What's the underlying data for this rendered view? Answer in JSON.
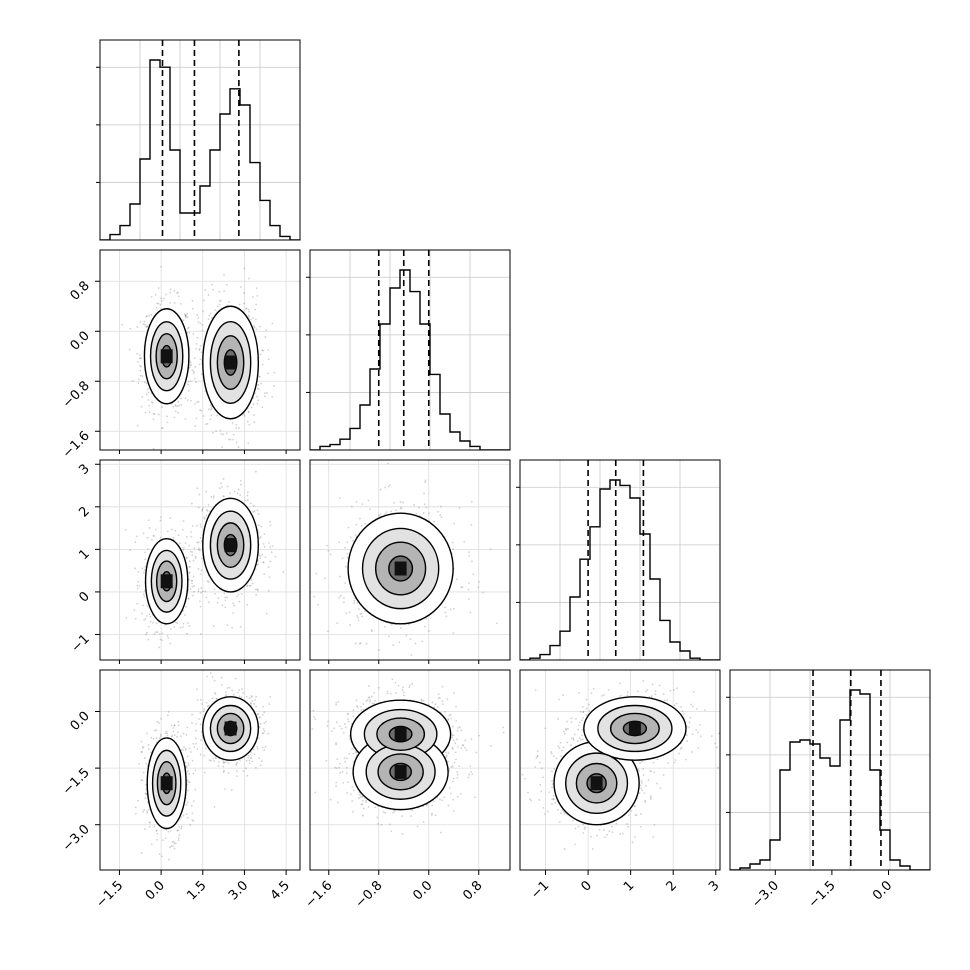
{
  "chart_data": {
    "type": "corner",
    "title": "",
    "n_params": 4,
    "params": [
      {
        "index": 0,
        "label": "",
        "range": [
          -2.2,
          5.0
        ],
        "ticks": [
          "−1.5",
          "0.0",
          "1.5",
          "3.0",
          "4.5"
        ],
        "tick_values": [
          -1.5,
          0.0,
          1.5,
          3.0,
          4.5
        ],
        "quantiles": [
          0.05,
          1.2,
          2.8
        ]
      },
      {
        "index": 1,
        "label": "",
        "range": [
          -1.9,
          1.3
        ],
        "ticks": [
          "−1.6",
          "−0.8",
          "0.0",
          "0.8"
        ],
        "tick_values": [
          -1.6,
          -0.8,
          0.0,
          0.8
        ],
        "quantiles": [
          -0.8,
          -0.4,
          0.0
        ]
      },
      {
        "index": 2,
        "label": "",
        "range": [
          -1.6,
          3.1
        ],
        "ticks": [
          "−1",
          "0",
          "1",
          "2",
          "3"
        ],
        "tick_values": [
          -1,
          0,
          1,
          2,
          3
        ],
        "quantiles": [
          0.0,
          0.65,
          1.3
        ]
      },
      {
        "index": 3,
        "label": "",
        "range": [
          -4.2,
          1.1
        ],
        "ticks": [
          "−3.0",
          "−1.5",
          "0.0"
        ],
        "tick_values": [
          -3.0,
          -1.5,
          0.0
        ],
        "quantiles": [
          -2.0,
          -1.0,
          -0.2
        ]
      }
    ],
    "histograms": [
      {
        "param": 0,
        "bin_counts": [
          0,
          3,
          8,
          20,
          45,
          100,
          96,
          50,
          15,
          15,
          30,
          50,
          70,
          84,
          75,
          43,
          22,
          8,
          2,
          0
        ]
      },
      {
        "param": 1,
        "bin_counts": [
          0,
          2,
          3,
          6,
          12,
          25,
          45,
          70,
          90,
          100,
          88,
          70,
          42,
          20,
          10,
          5,
          2,
          0,
          0,
          0
        ]
      },
      {
        "param": 2,
        "bin_counts": [
          0,
          1,
          3,
          8,
          16,
          35,
          56,
          74,
          95,
          100,
          97,
          90,
          70,
          45,
          22,
          10,
          5,
          1,
          0,
          0
        ]
      },
      {
        "param": 3,
        "bin_counts": [
          0,
          1,
          3,
          5,
          15,
          50,
          64,
          65,
          63,
          56,
          52,
          75,
          90,
          88,
          50,
          20,
          5,
          2,
          0,
          0
        ]
      }
    ],
    "joint_panels": [
      {
        "x": 0,
        "y": 1,
        "clusters": [
          {
            "mean": [
              0.2,
              -0.4
            ],
            "sd": [
              0.4,
              0.38
            ]
          },
          {
            "mean": [
              2.5,
              -0.5
            ],
            "sd": [
              0.5,
              0.45
            ]
          }
        ]
      },
      {
        "x": 0,
        "y": 2,
        "clusters": [
          {
            "mean": [
              0.2,
              0.25
            ],
            "sd": [
              0.38,
              0.5
            ]
          },
          {
            "mean": [
              2.5,
              1.1
            ],
            "sd": [
              0.5,
              0.55
            ]
          }
        ]
      },
      {
        "x": 1,
        "y": 2,
        "clusters": [
          {
            "mean": [
              -0.45,
              0.55
            ],
            "sd": [
              0.42,
              0.65
            ]
          }
        ]
      },
      {
        "x": 0,
        "y": 3,
        "clusters": [
          {
            "mean": [
              0.2,
              -1.9
            ],
            "sd": [
              0.35,
              0.6
            ]
          },
          {
            "mean": [
              2.5,
              -0.45
            ],
            "sd": [
              0.5,
              0.42
            ]
          }
        ]
      },
      {
        "x": 1,
        "y": 3,
        "clusters": [
          {
            "mean": [
              -0.45,
              -0.6
            ],
            "sd": [
              0.4,
              0.45
            ]
          },
          {
            "mean": [
              -0.45,
              -1.6
            ],
            "sd": [
              0.38,
              0.5
            ]
          }
        ]
      },
      {
        "x": 2,
        "y": 3,
        "clusters": [
          {
            "mean": [
              0.2,
              -1.9
            ],
            "sd": [
              0.5,
              0.55
            ]
          },
          {
            "mean": [
              1.1,
              -0.45
            ],
            "sd": [
              0.6,
              0.42
            ]
          }
        ]
      }
    ],
    "grid": true,
    "contour_levels": 4,
    "quantile_line_style": "dashed"
  }
}
